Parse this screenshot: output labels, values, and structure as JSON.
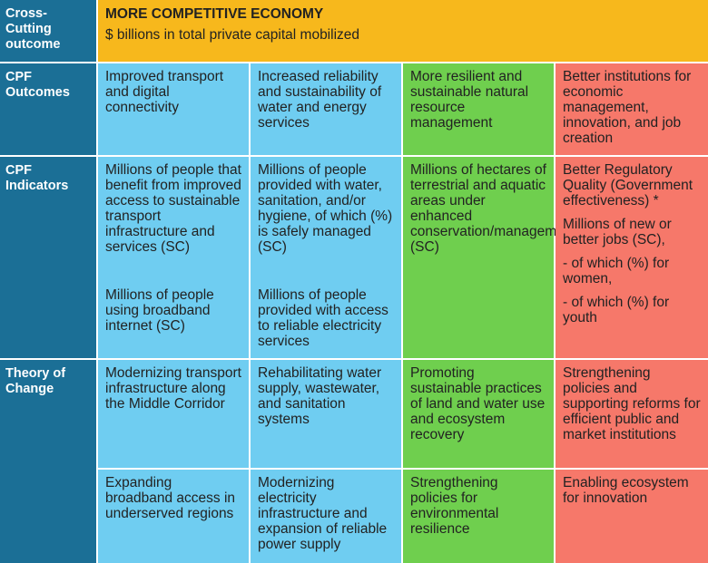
{
  "cross_cutting": {
    "label": "Cross-Cutting outcome",
    "title": "MORE COMPETITIVE ECONOMY",
    "subtitle": "$ billions in total private capital mobilized"
  },
  "cpf_outcomes": {
    "label": "CPF Outcomes",
    "cells": [
      "Improved transport and digital connectivity",
      "Increased reliability and sustainability of water and energy services",
      "More resilient and sustainable natural resource management",
      "Better institutions for economic management, innovation, and job creation"
    ]
  },
  "cpf_indicators": {
    "label": "CPF Indicators",
    "col1_a": "Millions of people that benefit from improved access to sustainable transport infrastructure and services (SC)",
    "col1_b": "Millions of people using broadband internet (SC)",
    "col2_a": "Millions of people provided with water, sanitation, and/or hygiene, of which (%) is safely managed (SC)",
    "col2_b": "Millions of people provided with access to reliable electricity services",
    "col3": "Millions of hectares of terrestrial and aquatic areas under enhanced conservation/management (SC)",
    "col4_a": "Better Regulatory Quality (Government effectiveness) *",
    "col4_b": "Millions of new or better jobs (SC),",
    "col4_c": "- of which (%) for women,",
    "col4_d": "- of which (%) for youth"
  },
  "theory_of_change": {
    "label": "Theory of Change",
    "row1": [
      "Modernizing transport infrastructure along the Middle Corridor",
      "Rehabilitating water supply, wastewater, and sanitation systems",
      "Promoting sustainable practices of land and water use and ecosystem recovery",
      "Strengthening policies and supporting reforms for efficient public and market institutions"
    ],
    "row2": [
      "Expanding broadband access in underserved regions",
      "Modernizing electricity infrastructure and expansion of reliable power supply",
      "Strengthening policies for environmental resilience",
      "Enabling ecosystem for innovation"
    ]
  },
  "colors": {
    "header": "#1b6f96",
    "gold": "#f7b81c",
    "blue": "#6fcdf1",
    "green": "#6fcf4e",
    "red": "#f6786a"
  }
}
